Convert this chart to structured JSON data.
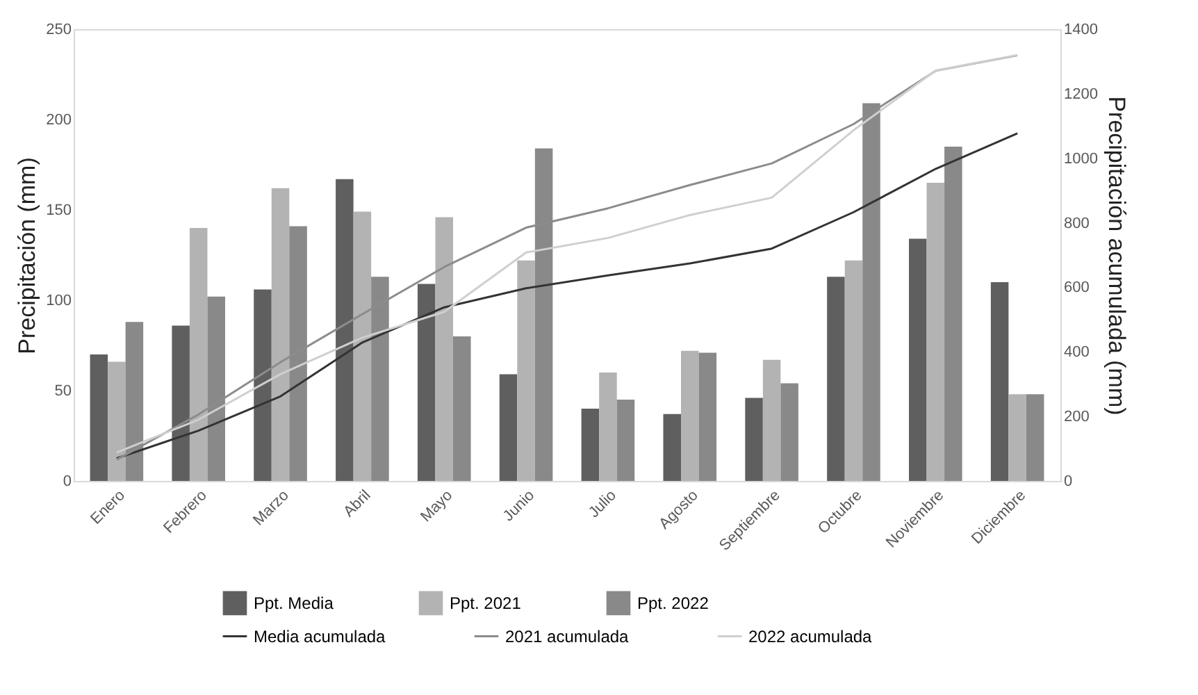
{
  "chart_data": {
    "type": "bar",
    "ylabel": "Precipitación (mm)",
    "y2label": "Precipitación acumulada (mm)",
    "categories": [
      "Enero",
      "Febrero",
      "Marzo",
      "Abril",
      "Mayo",
      "Junio",
      "Julio",
      "Agosto",
      "Septiembre",
      "Octubre",
      "Noviembre",
      "Diciembre"
    ],
    "series": [
      {
        "name": "Ppt. Media",
        "color": "#5f5f5f",
        "values": [
          70,
          86,
          106,
          167,
          109,
          59,
          40,
          37,
          46,
          113,
          134,
          110
        ]
      },
      {
        "name": "Ppt. 2021",
        "color": "#b3b3b3",
        "values": [
          66,
          140,
          162,
          149,
          146,
          122,
          60,
          72,
          67,
          122,
          165,
          48
        ]
      },
      {
        "name": "Ppt. 2022",
        "color": "#898989",
        "values": [
          88,
          102,
          141,
          113,
          80,
          184,
          45,
          71,
          54,
          209,
          185,
          48
        ]
      },
      {
        "name": "Media acumulada",
        "type": "line",
        "axis": "y2",
        "color": "#333333",
        "values": [
          70,
          156,
          262,
          429,
          538,
          597,
          637,
          674,
          720,
          833,
          967,
          1077
        ]
      },
      {
        "name": "2021 acumulada",
        "type": "line",
        "axis": "y2",
        "color": "#8c8c8c",
        "values": [
          66,
          206,
          368,
          517,
          663,
          785,
          845,
          917,
          984,
          1106,
          1271,
          1319
        ]
      },
      {
        "name": "2022 acumulada",
        "type": "line",
        "axis": "y2",
        "color": "#cfcfcf",
        "values": [
          88,
          190,
          331,
          444,
          524,
          708,
          753,
          824,
          878,
          1087,
          1272,
          1320
        ]
      }
    ],
    "ylim": [
      0,
      250
    ],
    "yticks": [
      0,
      50,
      100,
      150,
      200,
      250
    ],
    "y2lim": [
      0,
      1400
    ],
    "y2ticks": [
      0,
      200,
      400,
      600,
      800,
      1000,
      1200,
      1400
    ],
    "grid": false,
    "legend": "bottom",
    "marker": "none",
    "line_style": "solid"
  }
}
